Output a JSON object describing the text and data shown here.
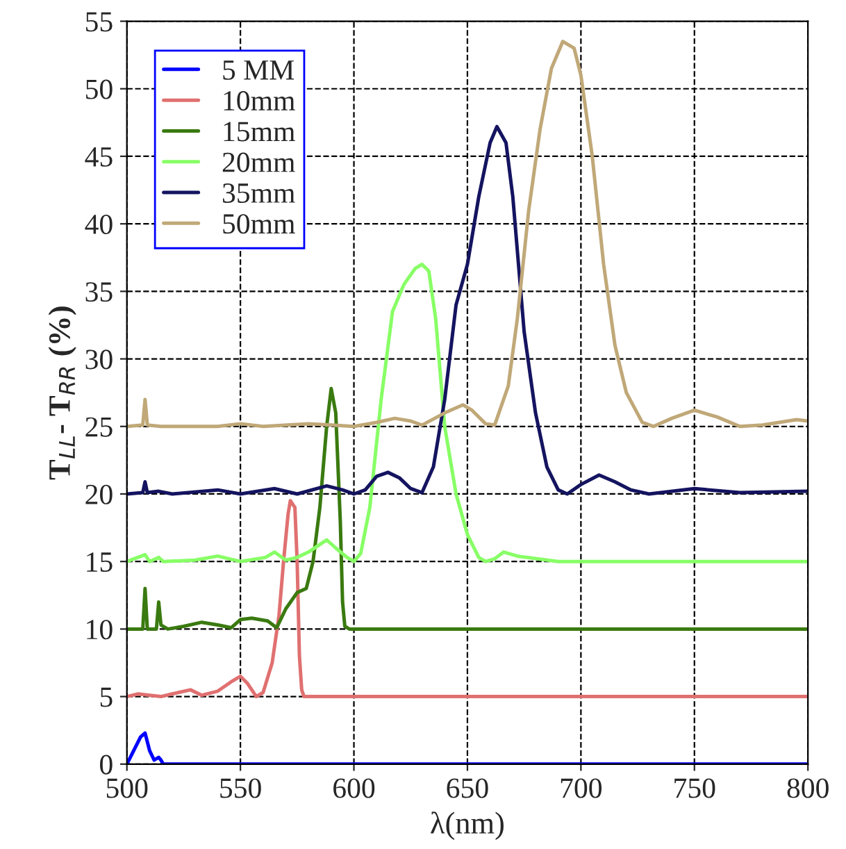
{
  "chart_data": {
    "type": "line",
    "xlabel": "λ(nm)",
    "ylabel": "T$_{LL}$- T$_{RR}$ (%)",
    "xlim": [
      500,
      800
    ],
    "ylim": [
      0,
      55
    ],
    "xticks": [
      500,
      550,
      600,
      650,
      700,
      750,
      800
    ],
    "yticks": [
      0,
      5,
      10,
      15,
      20,
      25,
      30,
      35,
      40,
      45,
      50,
      55
    ],
    "grid": true,
    "legend": "top left",
    "series": [
      {
        "name": "5 MM",
        "color": "#0000ff",
        "x": [
          500,
          503,
          506,
          508,
          510,
          512,
          514,
          515,
          516,
          520,
          600,
          700,
          800
        ],
        "values": [
          0,
          1,
          2,
          2.3,
          1.0,
          0.3,
          0.5,
          0.3,
          0,
          0,
          0,
          0,
          0
        ]
      },
      {
        "name": "10mm",
        "color": "#e07070",
        "x": [
          500,
          505,
          510,
          515,
          520,
          528,
          533,
          540,
          546,
          550,
          553,
          557,
          560,
          564,
          567,
          569,
          571,
          572,
          574,
          575,
          576,
          577,
          578,
          800
        ],
        "values": [
          5,
          5.2,
          5.1,
          5,
          5.2,
          5.5,
          5.1,
          5.4,
          6.1,
          6.5,
          6.0,
          5.0,
          5.3,
          7.5,
          11,
          15,
          18.5,
          19.5,
          19,
          15,
          8,
          5.5,
          5,
          5
        ]
      },
      {
        "name": "15mm",
        "color": "#3a7a10",
        "x": [
          500,
          507,
          508,
          509,
          513,
          514,
          515,
          518,
          525,
          533,
          540,
          546,
          550,
          555,
          562,
          566,
          570,
          575,
          579,
          582,
          585,
          588,
          590,
          592,
          594,
          595,
          596,
          598,
          800
        ],
        "values": [
          10,
          10,
          13,
          10,
          10,
          12,
          10.3,
          10,
          10.2,
          10.5,
          10.3,
          10.1,
          10.7,
          10.8,
          10.6,
          10.1,
          11.5,
          12.7,
          13.0,
          15,
          19,
          25,
          27.8,
          26,
          18,
          12,
          10.2,
          10,
          10
        ]
      },
      {
        "name": "20mm",
        "color": "#88ff66",
        "x": [
          500,
          508,
          510,
          514,
          516,
          530,
          540,
          550,
          561,
          565,
          570,
          575,
          580,
          588,
          592,
          597,
          600,
          603,
          607,
          612,
          617,
          622,
          627,
          630,
          633,
          636,
          640,
          645,
          650,
          655,
          658,
          662,
          666,
          672,
          690,
          800
        ],
        "values": [
          15,
          15.5,
          15,
          15.3,
          15,
          15.1,
          15.4,
          15.0,
          15.3,
          15.7,
          15.1,
          15.3,
          15.7,
          16.6,
          16.0,
          15.3,
          15,
          15.6,
          19,
          27,
          33.5,
          35.5,
          36.7,
          37,
          36.5,
          33,
          25,
          20,
          17,
          15.3,
          15.0,
          15.2,
          15.7,
          15.4,
          15,
          15
        ]
      },
      {
        "name": "35mm",
        "color": "#141460",
        "x": [
          500,
          507,
          508,
          509,
          514,
          520,
          540,
          550,
          565,
          575,
          588,
          595,
          600,
          605,
          610,
          615,
          620,
          625,
          630,
          635,
          640,
          645,
          650,
          655,
          660,
          663,
          667,
          670,
          675,
          680,
          685,
          690,
          694,
          700,
          708,
          715,
          722,
          730,
          750,
          770,
          800
        ],
        "values": [
          20,
          20.1,
          20.9,
          20.1,
          20.2,
          20,
          20.3,
          20,
          20.4,
          20,
          20.6,
          20.3,
          20,
          20.3,
          21.3,
          21.6,
          21.2,
          20.4,
          20.1,
          22,
          27,
          34,
          37,
          42,
          46,
          47.2,
          46,
          42,
          32,
          26,
          22,
          20.3,
          20,
          20.7,
          21.4,
          20.9,
          20.3,
          20,
          20.4,
          20.1,
          20.2
        ]
      },
      {
        "name": "50mm",
        "color": "#c0a878",
        "x": [
          500,
          507,
          508,
          509,
          515,
          530,
          540,
          550,
          560,
          580,
          590,
          600,
          610,
          618,
          625,
          630,
          640,
          648,
          652,
          658,
          662,
          668,
          672,
          677,
          682,
          687,
          692,
          697,
          700,
          705,
          710,
          715,
          720,
          727,
          732,
          740,
          750,
          760,
          770,
          780,
          795,
          800
        ],
        "values": [
          25,
          25.1,
          27,
          25.1,
          25,
          25,
          25,
          25.2,
          25,
          25.2,
          25.1,
          25,
          25.3,
          25.6,
          25.4,
          25.1,
          26,
          26.6,
          26.2,
          25.2,
          25.1,
          28,
          33,
          41,
          47,
          51.5,
          53.5,
          53,
          51,
          45,
          37,
          31,
          27.5,
          25.3,
          25,
          25.6,
          26.2,
          25.7,
          25,
          25.1,
          25.5,
          25.4
        ]
      }
    ]
  }
}
